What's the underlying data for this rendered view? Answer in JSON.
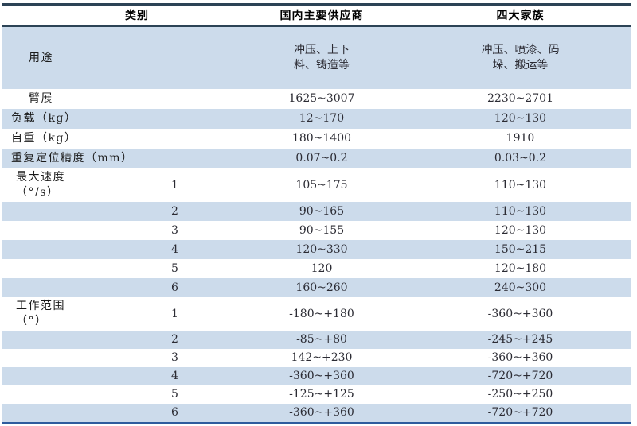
{
  "table": {
    "header": {
      "category": "类别",
      "domestic": "国内主要供应商",
      "big_four": "四大家族"
    },
    "rows": [
      {
        "label": "用途",
        "joint": "",
        "domestic": "冲压、上下\n料、铸造等",
        "big_four": "冲压、喷漆、码\n垛、搬运等"
      },
      {
        "label": "臂展",
        "joint": "",
        "domestic": "1625~3007",
        "big_four": "2230~2701"
      },
      {
        "label": "负载（kg）",
        "joint": "",
        "domestic": "12~170",
        "big_four": "120~130"
      },
      {
        "label": "自重（kg）",
        "joint": "",
        "domestic": "180~1400",
        "big_four": "1910"
      },
      {
        "label": "重复定位精度（mm）",
        "joint": "",
        "domestic": "0.07~0.2",
        "big_four": "0.03~0.2"
      },
      {
        "label": "最大速度\n（°/s）",
        "joint": "1",
        "domestic": "105~175",
        "big_four": "110~130"
      },
      {
        "label": "",
        "joint": "2",
        "domestic": "90~165",
        "big_four": "110~130"
      },
      {
        "label": "",
        "joint": "3",
        "domestic": "90~155",
        "big_four": "120~130"
      },
      {
        "label": "",
        "joint": "4",
        "domestic": "120~330",
        "big_four": "150~215"
      },
      {
        "label": "",
        "joint": "5",
        "domestic": "120",
        "big_four": "120~180"
      },
      {
        "label": "",
        "joint": "6",
        "domestic": "160~260",
        "big_four": "240~300"
      },
      {
        "label": "工作范围\n（°）",
        "joint": "1",
        "domestic": "-180~+180",
        "big_four": "-360~+360"
      },
      {
        "label": "",
        "joint": "2",
        "domestic": "-85~+80",
        "big_four": "-245~+245"
      },
      {
        "label": "",
        "joint": "3",
        "domestic": "142~+230",
        "big_four": "-360~+360"
      },
      {
        "label": "",
        "joint": "4",
        "domestic": "-360~+360",
        "big_four": "-720~+720"
      },
      {
        "label": "",
        "joint": "5",
        "domestic": "-125~+125",
        "big_four": "-250~+250"
      },
      {
        "label": "",
        "joint": "6",
        "domestic": "-360~+360",
        "big_four": "-720~+720"
      }
    ],
    "colors": {
      "stripe_blue": "#ccdbeb",
      "border_dark": "#2c4356",
      "border_bottom_blue": "#2e5c9e"
    }
  }
}
